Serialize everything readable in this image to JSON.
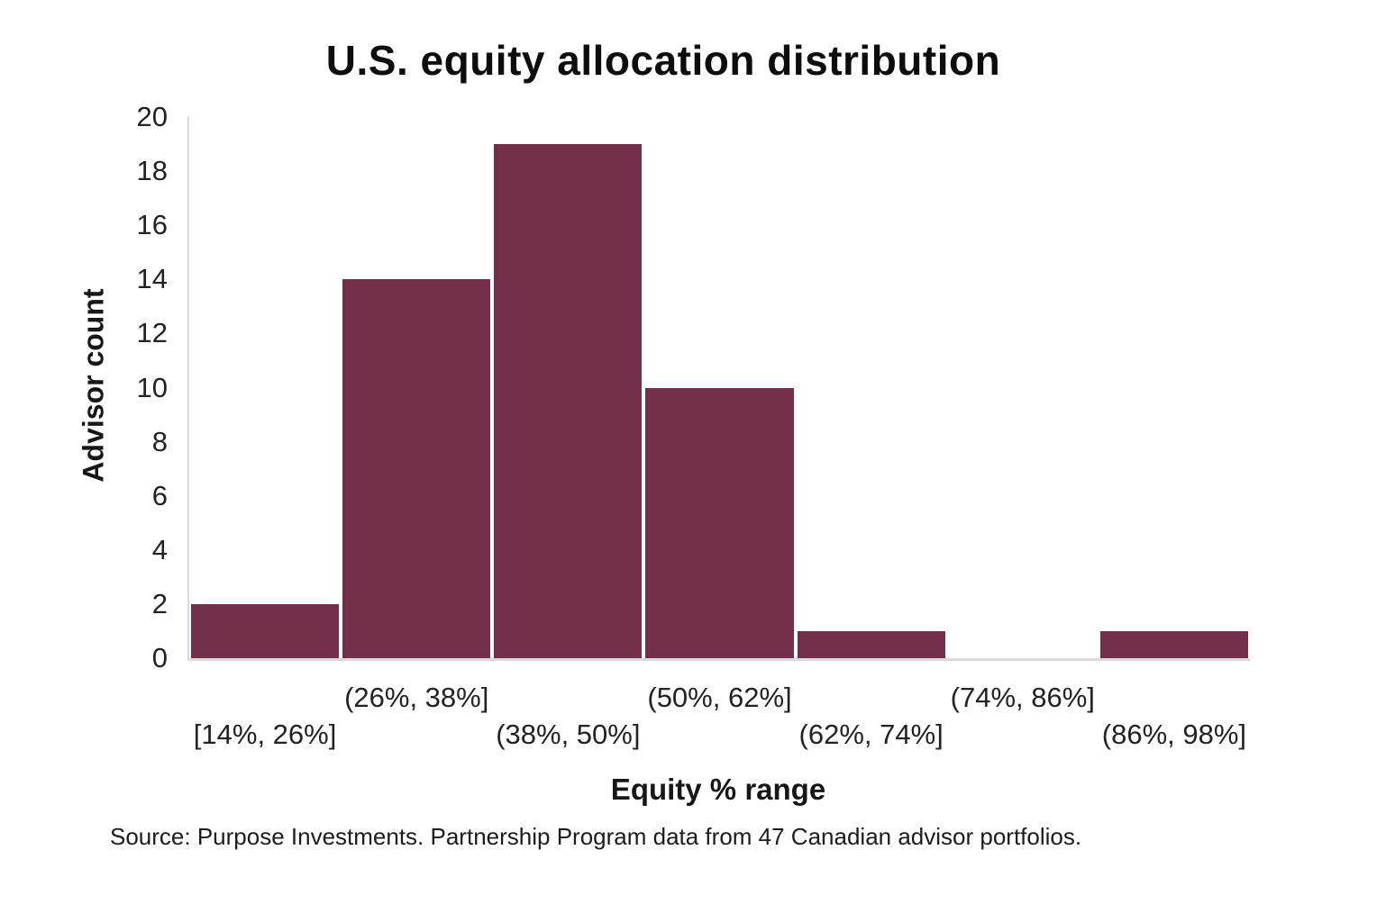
{
  "page": {
    "background": "#ffffff"
  },
  "source_note": "Source: Purpose Investments. Partnership Program data from 47 Canadian advisor portfolios.",
  "chart_data": {
    "type": "bar",
    "subtype": "histogram",
    "title": "U.S. equity allocation distribution",
    "xlabel": "Equity % range",
    "ylabel": "Advisor count",
    "categories": [
      "[14%, 26%]",
      "(26%, 38%]",
      "(38%, 50%]",
      "(50%, 62%]",
      "(62%, 74%]",
      "(74%, 86%]",
      "(86%, 98%]"
    ],
    "values": [
      2,
      14,
      19,
      10,
      1,
      0,
      1
    ],
    "ylim": [
      0,
      20
    ],
    "ytick_step": 2,
    "yticks": [
      0,
      2,
      4,
      6,
      8,
      10,
      12,
      14,
      16,
      18,
      20
    ],
    "grid": false,
    "legend": "none",
    "colors": {
      "bar": "#722F4A",
      "axis": "#DADADA",
      "text": "#222222"
    }
  }
}
